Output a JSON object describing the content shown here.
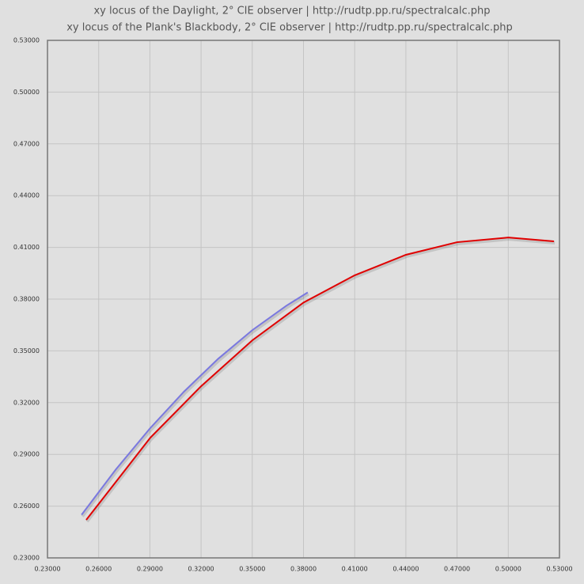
{
  "chart_data": {
    "type": "line",
    "titles": [
      "xy locus of the Daylight, 2° CIE observer | http://rudtp.pp.ru/spectralcalc.php",
      "xy locus of the Plank's Blackbody, 2° CIE observer | http://rudtp.pp.ru/spectralcalc.php"
    ],
    "series": [
      {
        "color": "#7a78e0",
        "x": [
          0.25,
          0.27,
          0.29,
          0.31,
          0.33,
          0.35,
          0.37,
          0.3825
        ],
        "values": [
          0.255,
          0.2812,
          0.305,
          0.3264,
          0.3454,
          0.362,
          0.3762,
          0.3839
        ]
      },
      {
        "color": "#e00000",
        "x": [
          0.2527,
          0.2903,
          0.32,
          0.35,
          0.38,
          0.41,
          0.44,
          0.47,
          0.5,
          0.5268
        ],
        "values": [
          0.252,
          0.2997,
          0.3295,
          0.3561,
          0.378,
          0.3938,
          0.4057,
          0.413,
          0.4157,
          0.4135
        ]
      }
    ],
    "xlim": [
      0.23,
      0.53
    ],
    "ylim": [
      0.23,
      0.53
    ],
    "xticks": [
      {
        "value": 0.23,
        "label": "0.23000"
      },
      {
        "value": 0.26,
        "label": "0.26000"
      },
      {
        "value": 0.29,
        "label": "0.29000"
      },
      {
        "value": 0.32,
        "label": "0.32000"
      },
      {
        "value": 0.35,
        "label": "0.35000"
      },
      {
        "value": 0.38,
        "label": "0.38000"
      },
      {
        "value": 0.41,
        "label": "0.41000"
      },
      {
        "value": 0.44,
        "label": "0.44000"
      },
      {
        "value": 0.47,
        "label": "0.47000"
      },
      {
        "value": 0.5,
        "label": "0.50000"
      },
      {
        "value": 0.53,
        "label": "0.53000"
      }
    ],
    "yticks": [
      {
        "value": 0.23,
        "label": "0.23000"
      },
      {
        "value": 0.26,
        "label": "0.26000"
      },
      {
        "value": 0.29,
        "label": "0.29000"
      },
      {
        "value": 0.32,
        "label": "0.32000"
      },
      {
        "value": 0.35,
        "label": "0.35000"
      },
      {
        "value": 0.38,
        "label": "0.38000"
      },
      {
        "value": 0.41,
        "label": "0.41000"
      },
      {
        "value": 0.44,
        "label": "0.44000"
      },
      {
        "value": 0.47,
        "label": "0.47000"
      },
      {
        "value": 0.5,
        "label": "0.50000"
      },
      {
        "value": 0.53,
        "label": "0.53000"
      }
    ],
    "grid": true
  }
}
